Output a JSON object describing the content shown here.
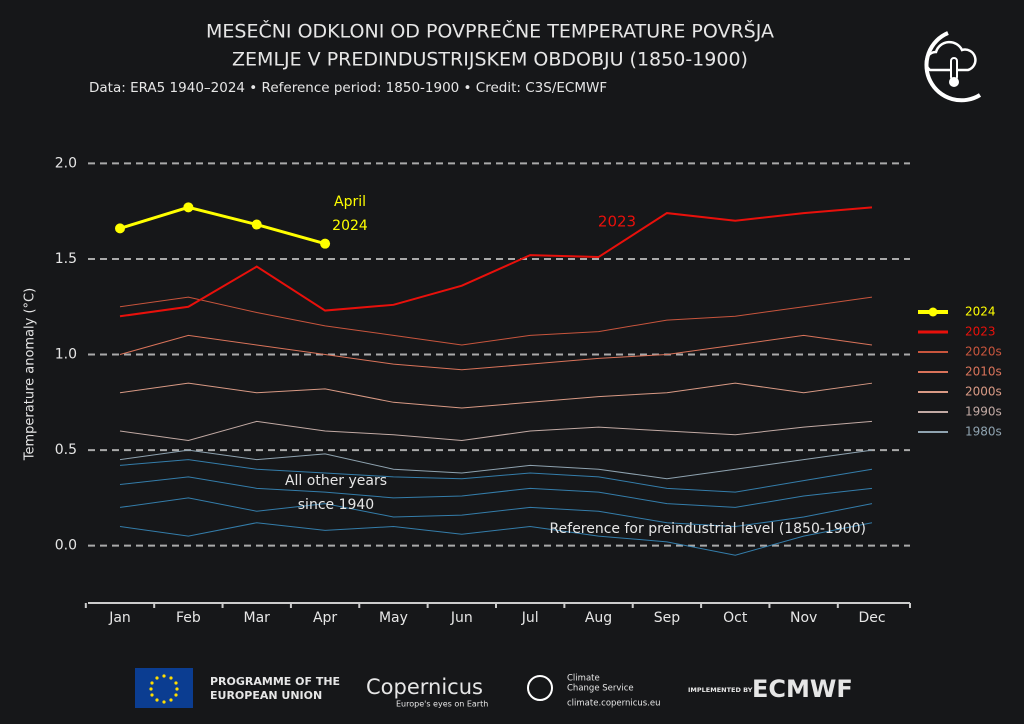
{
  "chart_data": {
    "type": "line",
    "title": [
      "MESEČNI ODKLONI OD POVPREČNE TEMPERATURE POVRŠJA",
      "ZEMLJE V PREDINDUSTRIJSKEM OBDOBJU (1850-1900)"
    ],
    "subtitle": "Data: ERA5 1940–2024 • Reference period: 1850-1900 • Credit: C3S/ECMWF",
    "y_label": "Temperature anomaly (°C)",
    "categories": [
      "Jan",
      "Feb",
      "Mar",
      "Apr",
      "May",
      "Jun",
      "Jul",
      "Aug",
      "Sep",
      "Oct",
      "Nov",
      "Dec"
    ],
    "ylim": [
      -0.3,
      2.07
    ],
    "yticks": [
      {
        "value": 0,
        "label": "0.0"
      },
      0.5,
      {
        "value": 1,
        "label": "1.0"
      },
      1.5,
      {
        "value": 2,
        "label": "2.0"
      }
    ],
    "grid": true,
    "legend": "right",
    "other_years": {
      "color": "#3a8fc4",
      "lines": [
        [
          0.32,
          0.36,
          0.3,
          0.28,
          0.25,
          0.26,
          0.3,
          0.28,
          0.22,
          0.2,
          0.26,
          0.3
        ],
        [
          0.2,
          0.25,
          0.18,
          0.22,
          0.15,
          0.16,
          0.2,
          0.18,
          0.12,
          0.1,
          0.15,
          0.22
        ],
        [
          0.1,
          0.05,
          0.12,
          0.08,
          0.1,
          0.06,
          0.1,
          0.05,
          0.02,
          -0.05,
          0.05,
          0.12
        ],
        [
          0.42,
          0.45,
          0.4,
          0.38,
          0.36,
          0.35,
          0.38,
          0.36,
          0.3,
          0.28,
          0.34,
          0.4
        ]
      ]
    },
    "series": [
      {
        "name": "2024",
        "color": "#ffff00",
        "linewidth": 3,
        "markers": true,
        "values": [
          1.66,
          1.77,
          1.68,
          1.58,
          null,
          null,
          null,
          null,
          null,
          null,
          null,
          null
        ]
      },
      {
        "name": "2023",
        "color": "#e8100b",
        "linewidth": 2,
        "values": [
          1.2,
          1.25,
          1.46,
          1.23,
          1.26,
          1.36,
          1.52,
          1.51,
          1.74,
          1.7,
          1.74,
          1.77
        ]
      },
      {
        "name": "2020s",
        "color": "#c8553d",
        "linewidth": 1,
        "values": [
          1.25,
          1.3,
          1.22,
          1.15,
          1.1,
          1.05,
          1.1,
          1.12,
          1.18,
          1.2,
          1.25,
          1.3
        ]
      },
      {
        "name": "2010s",
        "color": "#d9735a",
        "linewidth": 1,
        "values": [
          1.0,
          1.1,
          1.05,
          1.0,
          0.95,
          0.92,
          0.95,
          0.98,
          1.0,
          1.05,
          1.1,
          1.05
        ]
      },
      {
        "name": "2000s",
        "color": "#d99a85",
        "linewidth": 1,
        "values": [
          0.8,
          0.85,
          0.8,
          0.82,
          0.75,
          0.72,
          0.75,
          0.78,
          0.8,
          0.85,
          0.8,
          0.85
        ]
      },
      {
        "name": "1990s",
        "color": "#c2aaa4",
        "linewidth": 1,
        "values": [
          0.6,
          0.55,
          0.65,
          0.6,
          0.58,
          0.55,
          0.6,
          0.62,
          0.6,
          0.58,
          0.62,
          0.65
        ]
      },
      {
        "name": "1980s",
        "color": "#8fa3b0",
        "linewidth": 1,
        "values": [
          0.45,
          0.5,
          0.45,
          0.48,
          0.4,
          0.38,
          0.42,
          0.4,
          0.35,
          0.4,
          0.45,
          0.5
        ]
      }
    ],
    "annotations": {
      "april_2024": [
        "April",
        "2024"
      ],
      "label_2023": "2023",
      "other_years": [
        "All other years",
        "since 1940"
      ],
      "reference": "Reference for preindustrial level (1850-1900)"
    }
  },
  "footer": {
    "eu": [
      "PROGRAMME OF THE",
      "EUROPEAN UNION"
    ],
    "copernicus": "Copernicus",
    "copernicus_tagline": "Europe's eyes on Earth",
    "c3s": [
      "Climate",
      "Change Service"
    ],
    "c3s_url": "climate.copernicus.eu",
    "implemented_by": "IMPLEMENTED BY",
    "ecmwf": "ECMWF"
  }
}
